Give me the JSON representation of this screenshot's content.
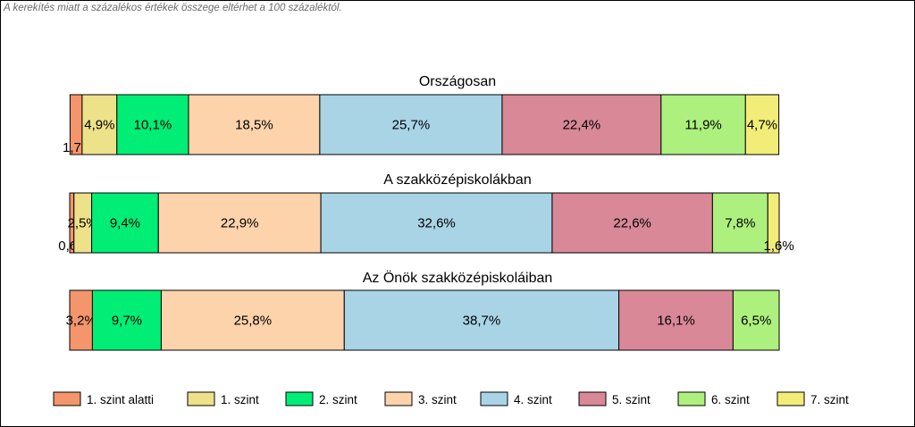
{
  "note": "A kerekítés miatt a  százalékos értékek összege eltérhet a 100 százaléktól.",
  "chart_data": {
    "type": "bar",
    "stacked": true,
    "orientation": "horizontal",
    "legend_position": "bottom",
    "grid": false,
    "categories": [
      "1. szint alatti",
      "1. szint",
      "2. szint",
      "3. szint",
      "4. szint",
      "5. szint",
      "6. szint",
      "7. szint"
    ],
    "colors": [
      "#f4956b",
      "#ede18a",
      "#00ee76",
      "#fcd3ab",
      "#a8d4e6",
      "#d88896",
      "#aef07e",
      "#f2ed78"
    ],
    "bars": [
      {
        "title": "Országosan",
        "values": [
          1.7,
          4.9,
          10.1,
          18.5,
          25.7,
          22.4,
          11.9,
          4.7
        ],
        "labels": [
          "1,7%",
          "4,9%",
          "10,1%",
          "18,5%",
          "25,7%",
          "22,4%",
          "11,9%",
          "4,7%"
        ]
      },
      {
        "title": "A szakközépiskolákban",
        "values": [
          0.6,
          2.5,
          9.4,
          22.9,
          32.6,
          22.6,
          7.8,
          1.6
        ],
        "labels": [
          "0,6%",
          "2,5%",
          "9,4%",
          "22,9%",
          "32,6%",
          "22,6%",
          "7,8%",
          "1,6%"
        ]
      },
      {
        "title": "Az Önök szakközépiskoláiban",
        "values": [
          3.2,
          0,
          9.7,
          25.8,
          38.7,
          16.1,
          6.5,
          0
        ],
        "labels": [
          "3,2%",
          "",
          "9,7%",
          "25,8%",
          "38,7%",
          "16,1%",
          "6,5%",
          ""
        ]
      }
    ]
  }
}
